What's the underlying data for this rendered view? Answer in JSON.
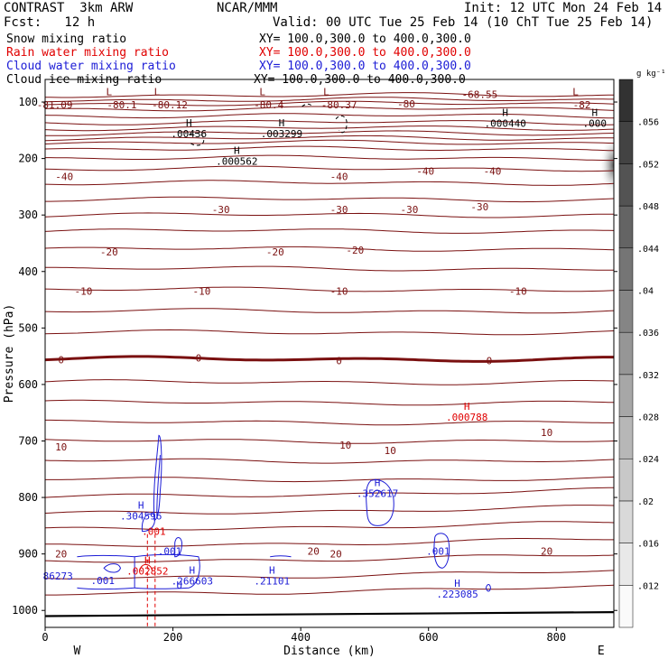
{
  "header": {
    "model": "CONTRAST  3km ARW",
    "org": "NCAR/MMM",
    "init": "Init: 12 UTC Mon 24 Feb 14",
    "fcst": "Fcst:   12 h",
    "valid": "Valid: 00 UTC Tue 25 Feb 14 (10 ChT Tue 25 Feb 14)",
    "fields": [
      {
        "name": "Snow mixing ratio",
        "xy": "XY= 100.0,300.0 to 400.0,300.0",
        "color": "#000000"
      },
      {
        "name": "Rain water mixing ratio",
        "xy": "XY= 100.0,300.0 to 400.0,300.0",
        "color": "#e00000"
      },
      {
        "name": "Cloud water mixing ratio",
        "xy": "XY= 100.0,300.0 to 400.0,300.0",
        "color": "#1c1cd6"
      },
      {
        "name": "Cloud ice mixing ratio",
        "xy": "XY= 100.0,300.0 to 400.0,300.0",
        "color": "#000000"
      }
    ]
  },
  "colors": {
    "temperature": "#7a1010",
    "snow": "#000000",
    "rain": "#e00000",
    "cloud_water": "#1c1cd6",
    "cloud_ice": "#000000"
  },
  "chart_data": {
    "type": "cross-section contour",
    "xlabel": "Distance (km)",
    "ylabel": "Pressure (hPa)",
    "xlim": [
      0,
      890
    ],
    "ylim": [
      1030,
      60
    ],
    "x_ticks": [
      0,
      200,
      400,
      600,
      800
    ],
    "y_ticks": [
      100,
      200,
      300,
      400,
      500,
      600,
      700,
      800,
      900,
      1000
    ],
    "x_end_labels": {
      "left": "W",
      "right": "E"
    },
    "colorbar": {
      "unit": "g kg⁻¹",
      "ticks": [
        ".012",
        ".016",
        ".02",
        ".024",
        ".028",
        ".032",
        ".036",
        ".04",
        ".044",
        ".048",
        ".052",
        ".056"
      ],
      "range": [
        0.008,
        0.06
      ]
    },
    "temperature_labels": [
      {
        "text": "-68.55",
        "x": 680,
        "p": 86
      },
      {
        "text": "-80.1",
        "x": 120,
        "p": 105
      },
      {
        "text": "-80.12",
        "x": 195,
        "p": 105
      },
      {
        "text": "-80.4",
        "x": 350,
        "p": 105
      },
      {
        "text": "-80.37",
        "x": 460,
        "p": 105
      },
      {
        "text": "-80",
        "x": 565,
        "p": 103
      },
      {
        "text": "-82",
        "x": 840,
        "p": 105
      },
      {
        "text": "-81.09",
        "x": 15,
        "p": 105
      },
      {
        "text": "-40",
        "x": 30,
        "p": 232
      },
      {
        "text": "-40",
        "x": 460,
        "p": 232
      },
      {
        "text": "-40",
        "x": 595,
        "p": 222
      },
      {
        "text": "-40",
        "x": 700,
        "p": 222
      },
      {
        "text": "-30",
        "x": 275,
        "p": 290
      },
      {
        "text": "-30",
        "x": 460,
        "p": 290
      },
      {
        "text": "-30",
        "x": 570,
        "p": 290
      },
      {
        "text": "-30",
        "x": 680,
        "p": 285
      },
      {
        "text": "-20",
        "x": 100,
        "p": 365
      },
      {
        "text": "-20",
        "x": 360,
        "p": 365
      },
      {
        "text": "-20",
        "x": 485,
        "p": 362
      },
      {
        "text": "-10",
        "x": 60,
        "p": 435
      },
      {
        "text": "-10",
        "x": 245,
        "p": 435
      },
      {
        "text": "-10",
        "x": 460,
        "p": 435
      },
      {
        "text": "-10",
        "x": 740,
        "p": 435
      },
      {
        "text": "0",
        "x": 25,
        "p": 556
      },
      {
        "text": "0",
        "x": 240,
        "p": 553
      },
      {
        "text": "0",
        "x": 460,
        "p": 558
      },
      {
        "text": "0",
        "x": 695,
        "p": 558
      },
      {
        "text": "10",
        "x": 25,
        "p": 710
      },
      {
        "text": "10",
        "x": 470,
        "p": 707
      },
      {
        "text": "10",
        "x": 540,
        "p": 717
      },
      {
        "text": "10",
        "x": 785,
        "p": 685
      },
      {
        "text": "20",
        "x": 25,
        "p": 900
      },
      {
        "text": "20",
        "x": 420,
        "p": 895
      },
      {
        "text": "20",
        "x": 455,
        "p": 900
      },
      {
        "text": "20",
        "x": 785,
        "p": 895
      }
    ],
    "extrema_labels": [
      {
        "symbol": "L",
        "value": "",
        "x": 100,
        "p": 88,
        "color": "#7a1010"
      },
      {
        "symbol": "L",
        "value": "",
        "x": 175,
        "p": 88,
        "color": "#7a1010"
      },
      {
        "symbol": "L",
        "value": "",
        "x": 340,
        "p": 88,
        "color": "#7a1010"
      },
      {
        "symbol": "L",
        "value": "",
        "x": 440,
        "p": 88,
        "color": "#7a1010"
      },
      {
        "symbol": "L",
        "value": "",
        "x": 830,
        "p": 88,
        "color": "#7a1010"
      },
      {
        "symbol": "H",
        "value": ".00436",
        "x": 225,
        "p": 143,
        "color": "#000000"
      },
      {
        "symbol": "H",
        "value": ".003299",
        "x": 370,
        "p": 143,
        "color": "#000000"
      },
      {
        "symbol": "H",
        "value": ".000440",
        "x": 720,
        "p": 125,
        "color": "#000000"
      },
      {
        "symbol": "H",
        "value": ".000",
        "x": 860,
        "p": 125,
        "color": "#000000"
      },
      {
        "symbol": "H",
        "value": ".000562",
        "x": 300,
        "p": 192,
        "color": "#000000"
      },
      {
        "symbol": "H",
        "value": ".000788",
        "x": 660,
        "p": 645,
        "color": "#e00000"
      },
      {
        "symbol": "H",
        "value": ".304596",
        "x": 150,
        "p": 820,
        "color": "#1c1cd6"
      },
      {
        "symbol": "H",
        "value": ".352617",
        "x": 520,
        "p": 780,
        "color": "#1c1cd6"
      },
      {
        "symbol": "H",
        "value": ".002852",
        "x": 160,
        "p": 917,
        "color": "#e00000"
      },
      {
        "symbol": "H",
        "value": ".266603",
        "x": 230,
        "p": 935,
        "color": "#1c1cd6"
      },
      {
        "symbol": "H",
        "value": ".21101",
        "x": 355,
        "p": 935,
        "color": "#1c1cd6"
      },
      {
        "symbol": "H",
        "value": ".223085",
        "x": 645,
        "p": 958,
        "color": "#1c1cd6"
      }
    ],
    "other_labels": [
      {
        "text": ".001",
        "x": 170,
        "p": 860,
        "color": "#e00000"
      },
      {
        "text": ".001",
        "x": 195,
        "p": 895,
        "color": "#1c1cd6"
      },
      {
        "text": ".001",
        "x": 615,
        "p": 895,
        "color": "#1c1cd6"
      },
      {
        "text": ".001",
        "x": 90,
        "p": 947,
        "color": "#1c1cd6"
      },
      {
        "text": "86273",
        "x": 20,
        "p": 939,
        "color": "#1c1cd6"
      },
      {
        "text": "U",
        "x": 210,
        "p": 955,
        "color": "#1c1cd6"
      }
    ]
  }
}
